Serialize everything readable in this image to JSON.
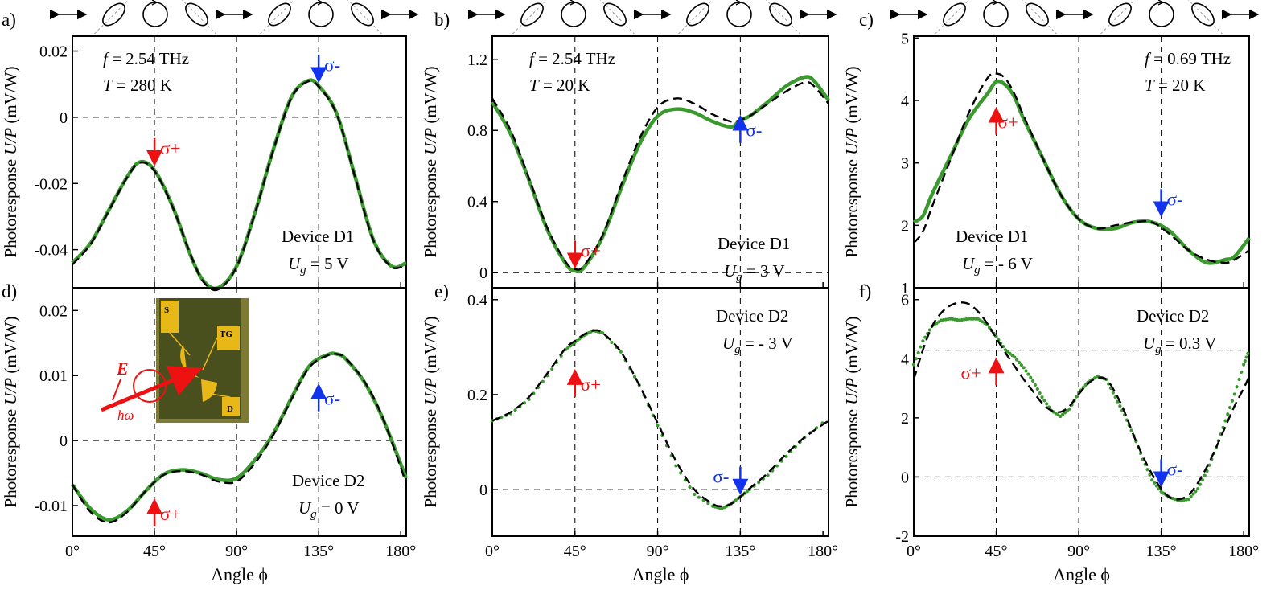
{
  "colors": {
    "fit": "#000000",
    "data": "#3a9a2e",
    "sigma_plus": "#ee1111",
    "sigma_minus": "#1133ee",
    "device_dark": "#4a4f1e",
    "device_edge": "#7c7a34",
    "gold": "#e8b818"
  },
  "icons": [
    "horizontal-double-arrow-icon",
    "tilted-ellipse-cw-icon",
    "circle-rotation-icon",
    "tilted-ellipse-ccw-icon"
  ],
  "inset": {
    "pads": [
      "S",
      "TG",
      "D"
    ],
    "field_label": "E",
    "photon_label": "ħω"
  },
  "chart_data": [
    {
      "panel": "a)",
      "type": "line",
      "ylabel": "Photoresponse U/P (mV/W)",
      "xlabel": "Angle ϕ",
      "xlim": [
        0,
        183
      ],
      "ylim": [
        -0.0515,
        0.0245
      ],
      "xticks": [
        "0°",
        "45°",
        "90°",
        "135°",
        "180°"
      ],
      "yticks": [
        {
          "v": 0.02,
          "t": "0.02"
        },
        {
          "v": 0,
          "t": "0"
        },
        {
          "v": -0.02,
          "t": "-0.02"
        },
        {
          "v": -0.04,
          "t": "-0.04"
        }
      ],
      "params": {
        "f": "f = 2.54 THz",
        "T": "T =  280 K"
      },
      "device": "Device D1",
      "gate": "Ug  = 5 V",
      "params_pos": "top-left",
      "device_pos": "bottom-right",
      "markers": [
        {
          "x": 45,
          "y": -0.0063,
          "label": "σ+",
          "dir": "down",
          "color": "red"
        },
        {
          "x": 135,
          "y": 0.0188,
          "label": "σ-",
          "dir": "down",
          "color": "blue"
        }
      ],
      "series": [
        {
          "style": "line",
          "x": [
            0,
            10,
            20,
            30,
            37,
            45,
            55,
            65,
            72,
            80,
            90,
            100,
            110,
            120,
            129,
            135,
            145,
            155,
            165,
            175,
            183
          ],
          "y": [
            -0.044,
            -0.038,
            -0.028,
            -0.018,
            -0.0135,
            -0.016,
            -0.027,
            -0.042,
            -0.0495,
            -0.0515,
            -0.045,
            -0.029,
            -0.01,
            0.006,
            0.011,
            0.0095,
            0.001,
            -0.018,
            -0.037,
            -0.045,
            -0.044
          ]
        },
        {
          "style": "dash",
          "x": [
            0,
            10,
            20,
            30,
            37,
            45,
            55,
            65,
            72,
            80,
            90,
            100,
            110,
            120,
            129,
            135,
            145,
            155,
            165,
            175,
            183
          ],
          "y": [
            -0.0445,
            -0.0383,
            -0.0282,
            -0.0182,
            -0.0137,
            -0.0162,
            -0.0272,
            -0.0418,
            -0.0498,
            -0.052,
            -0.0452,
            -0.0292,
            -0.0102,
            0.0058,
            0.0108,
            0.0093,
            0.0008,
            -0.0182,
            -0.0372,
            -0.0452,
            -0.0445
          ]
        }
      ]
    },
    {
      "panel": "b)",
      "type": "line",
      "ylabel": "Photoresponse U/P (mV/W)",
      "xlabel": "Angle ϕ",
      "xlim": [
        0,
        183
      ],
      "ylim": [
        -0.085,
        1.33
      ],
      "xticks": [
        "0°",
        "45°",
        "90°",
        "135°",
        "180°"
      ],
      "yticks": [
        {
          "v": 1.2,
          "t": "1.2"
        },
        {
          "v": 0.8,
          "t": "0.8"
        },
        {
          "v": 0.4,
          "t": "0.4"
        },
        {
          "v": 0,
          "t": "0"
        }
      ],
      "params": {
        "f": "f = 2.54 THz",
        "T": "T =  20 K"
      },
      "device": "Device D1",
      "gate": "Ug  = 3 V",
      "params_pos": "top-left",
      "device_pos": "mid-right",
      "markers": [
        {
          "x": 45,
          "y": 0.18,
          "label": "σ+",
          "dir": "down",
          "color": "red"
        },
        {
          "x": 135,
          "y": 0.73,
          "label": "σ-",
          "dir": "up",
          "color": "blue"
        }
      ],
      "series": [
        {
          "style": "line",
          "x": [
            0,
            10,
            20,
            30,
            40,
            45,
            50,
            60,
            70,
            80,
            90,
            100,
            110,
            120,
            130,
            135,
            140,
            150,
            160,
            170,
            175,
            183
          ],
          "y": [
            0.96,
            0.78,
            0.52,
            0.24,
            0.05,
            0.01,
            0.03,
            0.2,
            0.47,
            0.72,
            0.88,
            0.92,
            0.9,
            0.85,
            0.82,
            0.86,
            0.88,
            0.96,
            1.05,
            1.1,
            1.08,
            0.97
          ]
        },
        {
          "style": "dash",
          "x": [
            0,
            10,
            20,
            30,
            40,
            45,
            50,
            60,
            70,
            80,
            90,
            100,
            110,
            120,
            130,
            135,
            140,
            150,
            160,
            170,
            175,
            183
          ],
          "y": [
            0.98,
            0.8,
            0.53,
            0.25,
            0.06,
            0.02,
            0.04,
            0.21,
            0.49,
            0.75,
            0.93,
            0.98,
            0.95,
            0.89,
            0.85,
            0.86,
            0.88,
            0.95,
            1.02,
            1.07,
            1.05,
            0.95
          ]
        }
      ]
    },
    {
      "panel": "c)",
      "type": "line",
      "ylabel": "Photoresponse U/P (mV/W)",
      "xlabel": "Angle ϕ",
      "xlim": [
        0,
        183
      ],
      "ylim": [
        1.0,
        5.03
      ],
      "xticks": [
        "0°",
        "45°",
        "90°",
        "135°",
        "180°"
      ],
      "yticks": [
        {
          "v": 5,
          "t": "5"
        },
        {
          "v": 4,
          "t": "4"
        },
        {
          "v": 3,
          "t": "3"
        },
        {
          "v": 2,
          "t": "2"
        },
        {
          "v": 1,
          "t": "1"
        }
      ],
      "params": {
        "f": "f = 0.69 THz",
        "T": "T =  20 K"
      },
      "device": "Device D1",
      "gate": "Ug  = - 6 V",
      "params_pos": "top-right",
      "device_pos": "bottom-center",
      "markers": [
        {
          "x": 45,
          "y": 3.45,
          "label": "σ+",
          "dir": "up",
          "color": "red"
        },
        {
          "x": 135,
          "y": 2.58,
          "label": "σ-",
          "dir": "down",
          "color": "blue"
        }
      ],
      "series": [
        {
          "style": "line",
          "x": [
            0,
            5,
            10,
            20,
            30,
            40,
            45,
            50,
            55,
            60,
            70,
            80,
            90,
            100,
            110,
            120,
            130,
            140,
            150,
            160,
            170,
            175,
            183
          ],
          "y": [
            2.05,
            2.15,
            2.5,
            3.1,
            3.7,
            4.1,
            4.3,
            4.25,
            4.05,
            3.7,
            3.1,
            2.5,
            2.1,
            1.95,
            1.95,
            2.05,
            2.05,
            1.9,
            1.6,
            1.4,
            1.45,
            1.5,
            1.8
          ]
        },
        {
          "style": "dash",
          "x": [
            0,
            5,
            10,
            20,
            30,
            40,
            45,
            50,
            55,
            60,
            70,
            80,
            90,
            100,
            110,
            120,
            130,
            140,
            150,
            160,
            170,
            175,
            183
          ],
          "y": [
            1.72,
            1.9,
            2.3,
            3.05,
            3.8,
            4.35,
            4.43,
            4.35,
            4.1,
            3.75,
            3.1,
            2.5,
            2.1,
            1.95,
            2.0,
            2.05,
            2.05,
            1.85,
            1.6,
            1.45,
            1.4,
            1.45,
            1.6
          ]
        }
      ]
    },
    {
      "panel": "d)",
      "type": "line",
      "ylabel": "Photoresponse U/P (mV/W)",
      "xlabel": "Angle ϕ",
      "xlim": [
        0,
        183
      ],
      "ylim": [
        -0.0147,
        0.0235
      ],
      "xticks": [
        "0°",
        "45°",
        "90°",
        "135°",
        "180°"
      ],
      "yticks": [
        {
          "v": 0.02,
          "t": "0.02"
        },
        {
          "v": 0.01,
          "t": "0.01"
        },
        {
          "v": 0,
          "t": "0"
        },
        {
          "v": -0.01,
          "t": "-0.01"
        }
      ],
      "device": "Device D2",
      "gate": "Ug  = 0 V",
      "device_pos": "bottom-right",
      "markers": [
        {
          "x": 45,
          "y": -0.0132,
          "label": "σ+",
          "dir": "up",
          "color": "red"
        },
        {
          "x": 135,
          "y": 0.0045,
          "label": "σ-",
          "dir": "up",
          "color": "blue"
        }
      ],
      "series": [
        {
          "style": "line",
          "x": [
            0,
            10,
            20,
            30,
            40,
            50,
            60,
            70,
            80,
            90,
            100,
            110,
            120,
            130,
            140,
            145,
            150,
            160,
            170,
            183
          ],
          "y": [
            -0.0068,
            -0.0105,
            -0.0122,
            -0.0108,
            -0.0078,
            -0.0052,
            -0.0045,
            -0.005,
            -0.006,
            -0.0058,
            -0.003,
            0.001,
            0.0065,
            0.0115,
            0.0132,
            0.0133,
            0.0125,
            0.009,
            0.0035,
            -0.0058
          ]
        },
        {
          "style": "dash",
          "x": [
            0,
            10,
            20,
            30,
            40,
            50,
            60,
            70,
            80,
            90,
            100,
            110,
            120,
            130,
            140,
            145,
            150,
            160,
            170,
            183
          ],
          "y": [
            -0.0068,
            -0.011,
            -0.0126,
            -0.011,
            -0.0078,
            -0.0053,
            -0.0047,
            -0.0052,
            -0.0063,
            -0.0063,
            -0.0035,
            0.0008,
            0.0063,
            0.0113,
            0.0131,
            0.0133,
            0.0126,
            0.0091,
            0.0036,
            -0.0066
          ]
        }
      ]
    },
    {
      "panel": "e)",
      "type": "line",
      "ylabel": "Photoresponse U/P (mV/W)",
      "xlabel": "Angle ϕ",
      "xlim": [
        0,
        183
      ],
      "ylim": [
        -0.098,
        0.425
      ],
      "xticks": [
        "0°",
        "45°",
        "90°",
        "135°",
        "180°"
      ],
      "yticks": [
        {
          "v": 0.4,
          "t": "0.4"
        },
        {
          "v": 0.2,
          "t": "0.2"
        },
        {
          "v": 0,
          "t": "0"
        }
      ],
      "device": "Device D2",
      "gate": "Ug  = - 3 V",
      "device_pos": "top-right",
      "markers": [
        {
          "x": 45,
          "y": 0.195,
          "label": "σ+",
          "dir": "up",
          "color": "red"
        },
        {
          "x": 135,
          "y": 0.048,
          "label": "σ-",
          "dir": "down",
          "color": "blue"
        }
      ],
      "series": [
        {
          "style": "dots",
          "x": [
            0,
            10,
            20,
            30,
            40,
            45,
            50,
            55,
            60,
            70,
            80,
            90,
            100,
            110,
            120,
            125,
            130,
            135,
            140,
            150,
            160,
            170,
            183
          ],
          "y": [
            0.145,
            0.16,
            0.19,
            0.24,
            0.295,
            0.31,
            0.325,
            0.335,
            0.33,
            0.29,
            0.22,
            0.135,
            0.05,
            -0.01,
            -0.035,
            -0.04,
            -0.03,
            -0.015,
            0.0,
            0.03,
            0.07,
            0.11,
            0.15
          ]
        },
        {
          "style": "dash",
          "x": [
            0,
            10,
            20,
            30,
            40,
            45,
            50,
            55,
            60,
            70,
            80,
            90,
            100,
            110,
            120,
            125,
            130,
            135,
            140,
            150,
            160,
            170,
            183
          ],
          "y": [
            0.145,
            0.163,
            0.195,
            0.245,
            0.298,
            0.313,
            0.327,
            0.335,
            0.33,
            0.29,
            0.22,
            0.14,
            0.06,
            0.0,
            -0.03,
            -0.035,
            -0.03,
            -0.015,
            0.002,
            0.035,
            0.075,
            0.11,
            0.145
          ]
        }
      ]
    },
    {
      "panel": "f)",
      "type": "line",
      "ylabel": "Photoresponse U/P (mV/W)",
      "xlabel": "Angle ϕ",
      "xlim": [
        0,
        183
      ],
      "ylim": [
        -2.0,
        6.4
      ],
      "xticks": [
        "0°",
        "45°",
        "90°",
        "135°",
        "180°"
      ],
      "yticks": [
        {
          "v": 6,
          "t": "6"
        },
        {
          "v": 4,
          "t": "4"
        },
        {
          "v": 2,
          "t": "2"
        },
        {
          "v": 0,
          "t": "0"
        },
        {
          "v": -2,
          "t": "-2"
        }
      ],
      "device": "Device D2",
      "gate": "Ug  = 0.3 V",
      "device_pos": "top-right",
      "markers": [
        {
          "x": 45,
          "y": 3.1,
          "label": "σ+",
          "dir": "up",
          "color": "red"
        },
        {
          "x": 135,
          "y": 0.6,
          "label": "σ-",
          "dir": "down",
          "color": "blue"
        }
      ],
      "series": [
        {
          "style": "dots",
          "x": [
            0,
            5,
            10,
            15,
            20,
            25,
            30,
            35,
            40,
            45,
            50,
            55,
            60,
            65,
            70,
            75,
            80,
            85,
            90,
            95,
            100,
            105,
            110,
            115,
            120,
            125,
            130,
            135,
            140,
            145,
            150,
            155,
            160,
            165,
            170,
            175,
            180,
            183
          ],
          "y": [
            3.8,
            4.6,
            5.1,
            5.3,
            5.35,
            5.3,
            5.35,
            5.35,
            5.15,
            4.75,
            4.3,
            4.05,
            3.7,
            3.25,
            2.7,
            2.25,
            2.05,
            2.3,
            2.85,
            3.2,
            3.4,
            3.3,
            2.7,
            2.1,
            1.4,
            0.6,
            -0.1,
            -0.5,
            -0.7,
            -0.8,
            -0.75,
            -0.4,
            0.2,
            1.0,
            1.9,
            2.8,
            3.8,
            4.3
          ]
        },
        {
          "style": "dash",
          "x": [
            0,
            5,
            10,
            15,
            20,
            25,
            30,
            35,
            40,
            45,
            50,
            55,
            60,
            65,
            70,
            75,
            80,
            85,
            90,
            95,
            100,
            105,
            110,
            115,
            120,
            125,
            130,
            135,
            140,
            145,
            150,
            155,
            160,
            165,
            170,
            175,
            180,
            183
          ],
          "y": [
            3.3,
            4.3,
            5.1,
            5.55,
            5.8,
            5.9,
            5.85,
            5.6,
            5.2,
            4.7,
            4.2,
            3.75,
            3.3,
            2.9,
            2.5,
            2.25,
            2.2,
            2.4,
            2.8,
            3.15,
            3.35,
            3.3,
            2.85,
            2.2,
            1.4,
            0.7,
            0.1,
            -0.4,
            -0.7,
            -0.75,
            -0.6,
            -0.2,
            0.35,
            1.0,
            1.7,
            2.4,
            3.0,
            3.4
          ]
        }
      ]
    }
  ]
}
